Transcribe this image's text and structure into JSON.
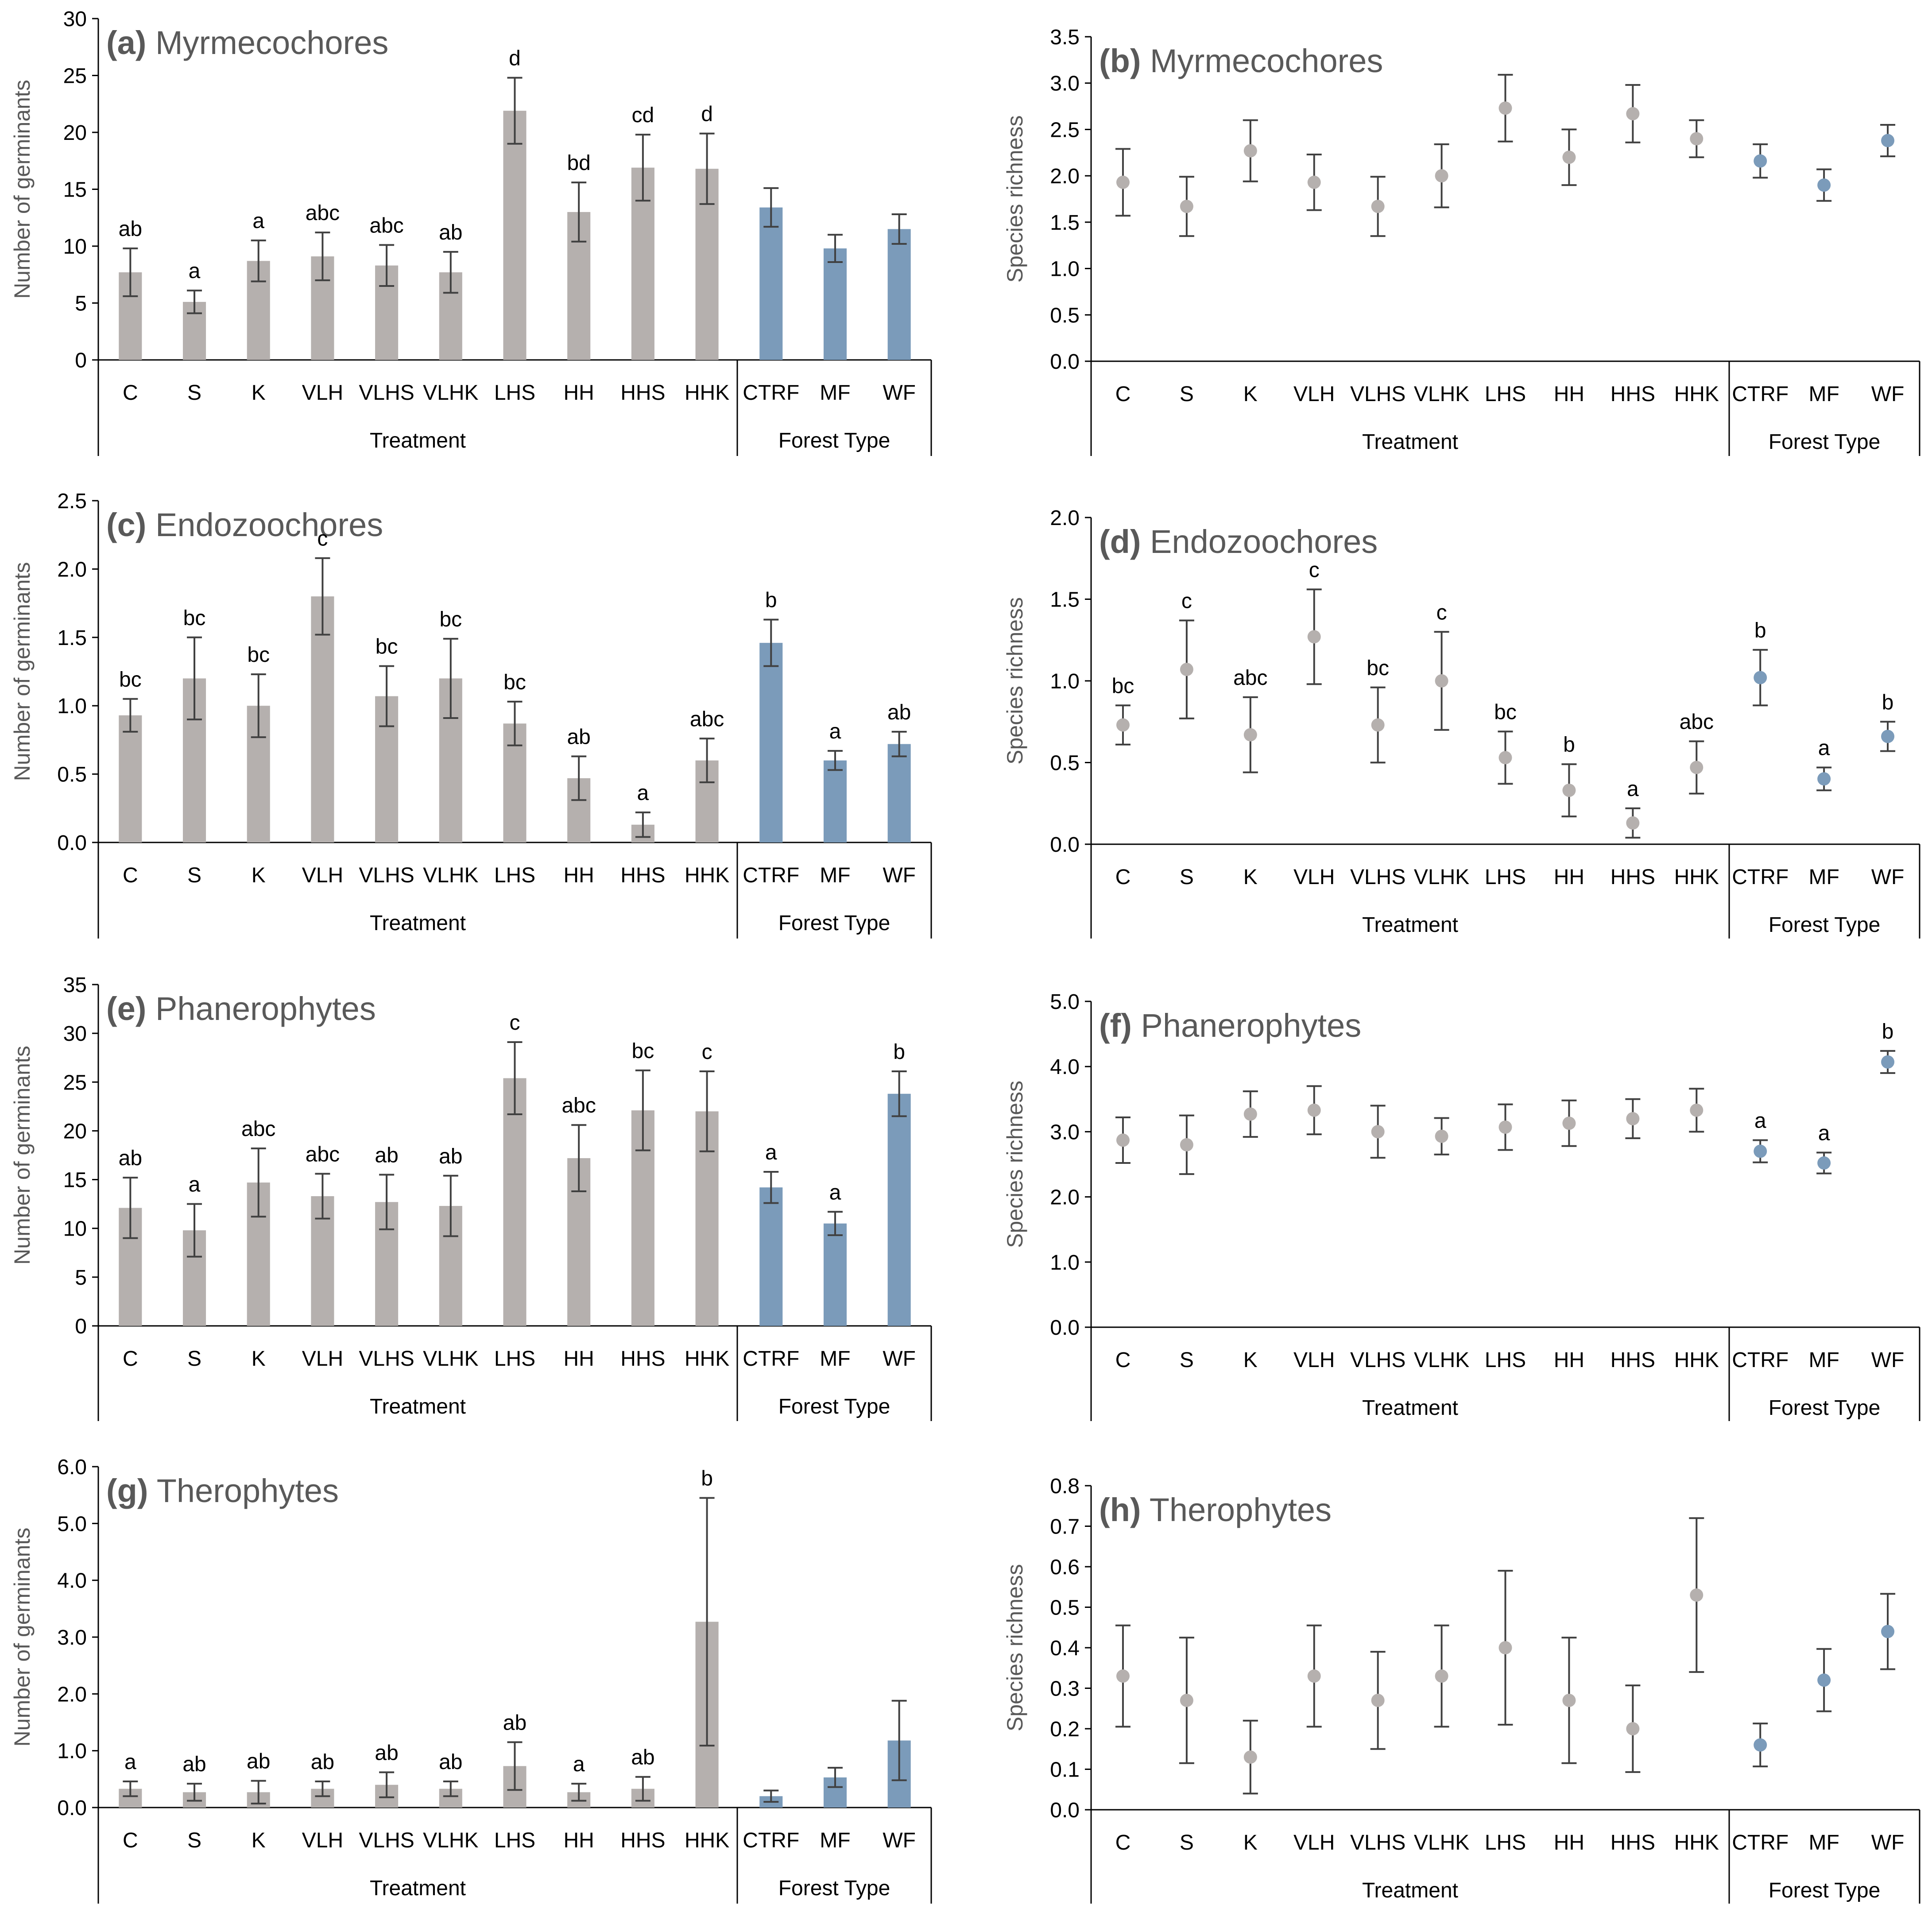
{
  "chart_data": [
    {
      "id": "a",
      "type": "bar",
      "letter": "(a)",
      "title": "Myrmecochores",
      "ylabel": "Number of germinants",
      "ylim": [
        0,
        30
      ],
      "yticks": [
        "0",
        "5",
        "10",
        "15",
        "20",
        "25",
        "30"
      ],
      "categories": [
        "C",
        "S",
        "K",
        "VLH",
        "VLHS",
        "VLHK",
        "LHS",
        "HH",
        "HHS",
        "HHK",
        "CTRF",
        "MF",
        "WF"
      ],
      "group_labels": [
        "Treatment",
        "Forest Type"
      ],
      "values": [
        7.7,
        5.1,
        8.7,
        9.1,
        8.3,
        7.7,
        21.9,
        13.0,
        16.9,
        16.8,
        13.4,
        9.8,
        11.5
      ],
      "errors": [
        2.1,
        1.0,
        1.8,
        2.1,
        1.8,
        1.8,
        2.9,
        2.6,
        2.9,
        3.1,
        1.7,
        1.2,
        1.3
      ],
      "letters": [
        "ab",
        "a",
        "a",
        "abc",
        "abc",
        "ab",
        "d",
        "bd",
        "cd",
        "d",
        "",
        "",
        ""
      ]
    },
    {
      "id": "b",
      "type": "scatter",
      "letter": "(b)",
      "title": "Myrmecochores",
      "ylabel": "Species richness",
      "ylim": [
        0,
        3.5
      ],
      "yticks": [
        "0.0",
        "0.5",
        "1.0",
        "1.5",
        "2.0",
        "2.5",
        "3.0",
        "3.5"
      ],
      "categories": [
        "C",
        "S",
        "K",
        "VLH",
        "VLHS",
        "VLHK",
        "LHS",
        "HH",
        "HHS",
        "HHK",
        "CTRF",
        "MF",
        "WF"
      ],
      "group_labels": [
        "Treatment",
        "Forest Type"
      ],
      "values": [
        1.93,
        1.67,
        2.27,
        1.93,
        1.67,
        2.0,
        2.73,
        2.2,
        2.67,
        2.4,
        2.16,
        1.9,
        2.38
      ],
      "errors": [
        0.36,
        0.32,
        0.33,
        0.3,
        0.32,
        0.34,
        0.36,
        0.3,
        0.31,
        0.2,
        0.18,
        0.17,
        0.17
      ],
      "letters": [
        "",
        "",
        "",
        "",
        "",
        "",
        "",
        "",
        "",
        "",
        "",
        "",
        ""
      ]
    },
    {
      "id": "c",
      "type": "bar",
      "letter": "(c)",
      "title": "Endozoochores",
      "ylabel": "Number of germinants",
      "ylim": [
        0,
        2.5
      ],
      "yticks": [
        "0.0",
        "0.5",
        "1.0",
        "1.5",
        "2.0",
        "2.5"
      ],
      "categories": [
        "C",
        "S",
        "K",
        "VLH",
        "VLHS",
        "VLHK",
        "LHS",
        "HH",
        "HHS",
        "HHK",
        "CTRF",
        "MF",
        "WF"
      ],
      "group_labels": [
        "Treatment",
        "Forest Type"
      ],
      "values": [
        0.93,
        1.2,
        1.0,
        1.8,
        1.07,
        1.2,
        0.87,
        0.47,
        0.13,
        0.6,
        1.46,
        0.6,
        0.72
      ],
      "errors": [
        0.12,
        0.3,
        0.23,
        0.28,
        0.22,
        0.29,
        0.16,
        0.16,
        0.09,
        0.16,
        0.17,
        0.07,
        0.09
      ],
      "letters": [
        "bc",
        "bc",
        "bc",
        "c",
        "bc",
        "bc",
        "bc",
        "ab",
        "a",
        "abc",
        "b",
        "a",
        "ab"
      ]
    },
    {
      "id": "d",
      "type": "scatter",
      "letter": "(d)",
      "title": "Endozoochores",
      "ylabel": "Species richness",
      "ylim": [
        0,
        2.0
      ],
      "yticks": [
        "0.0",
        "0.5",
        "1.0",
        "1.5",
        "2.0"
      ],
      "categories": [
        "C",
        "S",
        "K",
        "VLH",
        "VLHS",
        "VLHK",
        "LHS",
        "HH",
        "HHS",
        "HHK",
        "CTRF",
        "MF",
        "WF"
      ],
      "group_labels": [
        "Treatment",
        "Forest Type"
      ],
      "values": [
        0.73,
        1.07,
        0.67,
        1.27,
        0.73,
        1.0,
        0.53,
        0.33,
        0.13,
        0.47,
        1.02,
        0.4,
        0.66
      ],
      "errors": [
        0.12,
        0.3,
        0.23,
        0.29,
        0.23,
        0.3,
        0.16,
        0.16,
        0.09,
        0.16,
        0.17,
        0.07,
        0.09
      ],
      "letters": [
        "bc",
        "c",
        "abc",
        "c",
        "bc",
        "c",
        "bc",
        "b",
        "a",
        "abc",
        "b",
        "a",
        "b"
      ]
    },
    {
      "id": "e",
      "type": "bar",
      "letter": "(e)",
      "title": "Phanerophytes",
      "ylabel": "Number of germinants",
      "ylim": [
        0,
        35
      ],
      "yticks": [
        "0",
        "5",
        "10",
        "15",
        "20",
        "25",
        "30",
        "35"
      ],
      "categories": [
        "C",
        "S",
        "K",
        "VLH",
        "VLHS",
        "VLHK",
        "LHS",
        "HH",
        "HHS",
        "HHK",
        "CTRF",
        "MF",
        "WF"
      ],
      "group_labels": [
        "Treatment",
        "Forest Type"
      ],
      "values": [
        12.1,
        9.8,
        14.7,
        13.3,
        12.7,
        12.3,
        25.4,
        17.2,
        22.1,
        22.0,
        14.2,
        10.5,
        23.8
      ],
      "errors": [
        3.1,
        2.7,
        3.5,
        2.3,
        2.8,
        3.1,
        3.7,
        3.4,
        4.1,
        4.1,
        1.6,
        1.2,
        2.3
      ],
      "letters": [
        "ab",
        "a",
        "abc",
        "abc",
        "ab",
        "ab",
        "c",
        "abc",
        "bc",
        "c",
        "a",
        "a",
        "b"
      ]
    },
    {
      "id": "f",
      "type": "scatter",
      "letter": "(f)",
      "title": "Phanerophytes",
      "ylabel": "Species richness",
      "ylim": [
        0,
        5
      ],
      "yticks": [
        "0.0",
        "1.0",
        "2.0",
        "3.0",
        "4.0",
        "5.0"
      ],
      "categories": [
        "C",
        "S",
        "K",
        "VLH",
        "VLHS",
        "VLHK",
        "LHS",
        "HH",
        "HHS",
        "HHK",
        "CTRF",
        "MF",
        "WF"
      ],
      "group_labels": [
        "Treatment",
        "Forest Type"
      ],
      "values": [
        2.87,
        2.8,
        3.27,
        3.33,
        3.0,
        2.93,
        3.07,
        3.13,
        3.2,
        3.33,
        2.7,
        2.52,
        4.07
      ],
      "errors": [
        0.35,
        0.45,
        0.35,
        0.37,
        0.4,
        0.28,
        0.35,
        0.35,
        0.3,
        0.33,
        0.17,
        0.16,
        0.17
      ],
      "letters": [
        "",
        "",
        "",
        "",
        "",
        "",
        "",
        "",
        "",
        "",
        "a",
        "a",
        "b"
      ]
    },
    {
      "id": "g",
      "type": "bar",
      "letter": "(g)",
      "title": "Therophytes",
      "ylabel": "Number of germinants",
      "ylim": [
        0,
        6
      ],
      "yticks": [
        "0.0",
        "1.0",
        "2.0",
        "3.0",
        "4.0",
        "5.0",
        "6.0"
      ],
      "categories": [
        "C",
        "S",
        "K",
        "VLH",
        "VLHS",
        "VLHK",
        "LHS",
        "HH",
        "HHS",
        "HHK",
        "CTRF",
        "MF",
        "WF"
      ],
      "group_labels": [
        "Treatment",
        "Forest Type"
      ],
      "values": [
        0.33,
        0.27,
        0.27,
        0.33,
        0.4,
        0.33,
        0.73,
        0.27,
        0.33,
        3.27,
        0.2,
        0.53,
        1.18
      ],
      "errors": [
        0.13,
        0.15,
        0.2,
        0.13,
        0.22,
        0.13,
        0.42,
        0.15,
        0.21,
        2.18,
        0.1,
        0.17,
        0.7
      ],
      "letters": [
        "a",
        "ab",
        "ab",
        "ab",
        "ab",
        "ab",
        "ab",
        "a",
        "ab",
        "b",
        "",
        "",
        ""
      ]
    },
    {
      "id": "h",
      "type": "scatter",
      "letter": "(h)",
      "title": "Therophytes",
      "ylabel": "Species richness",
      "ylim": [
        0,
        0.8
      ],
      "yticks": [
        "0.0",
        "0.1",
        "0.2",
        "0.3",
        "0.4",
        "0.5",
        "0.6",
        "0.7",
        "0.8"
      ],
      "categories": [
        "C",
        "S",
        "K",
        "VLH",
        "VLHS",
        "VLHK",
        "LHS",
        "HH",
        "HHS",
        "HHK",
        "CTRF",
        "MF",
        "WF"
      ],
      "group_labels": [
        "Treatment",
        "Forest Type"
      ],
      "values": [
        0.33,
        0.27,
        0.13,
        0.33,
        0.27,
        0.33,
        0.4,
        0.27,
        0.2,
        0.53,
        0.16,
        0.32,
        0.44
      ],
      "errors": [
        0.125,
        0.155,
        0.09,
        0.125,
        0.12,
        0.125,
        0.19,
        0.155,
        0.107,
        0.19,
        0.053,
        0.077,
        0.093
      ],
      "letters": [
        "",
        "",
        "",
        "",
        "",
        "",
        "",
        "",
        "",
        "",
        "",
        "",
        ""
      ]
    }
  ],
  "colors": {
    "treatment": "#b5b0ae",
    "forest": "#7b9bba",
    "error_bar": "#404040",
    "axis": "#000000",
    "text": "#595959",
    "label_text": "#000000"
  }
}
